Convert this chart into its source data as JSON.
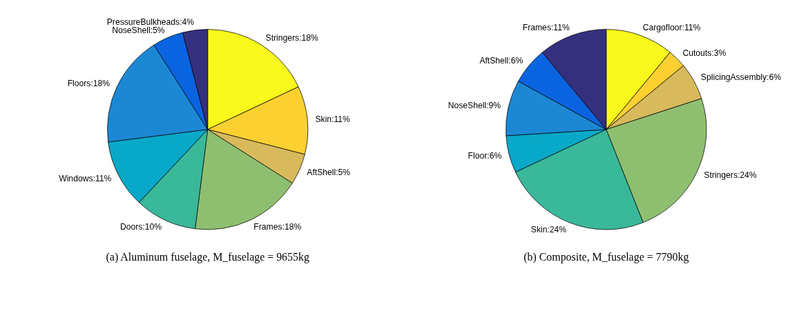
{
  "chart_data": [
    {
      "type": "pie",
      "title": "(a) Aluminum fuselage, M_fuselage = 9655kg",
      "categories": [
        "Stringers",
        "Skin",
        "AftShell",
        "Frames",
        "Doors",
        "Windows",
        "Floors",
        "NoseShell",
        "PressureBulkheads"
      ],
      "values": [
        18,
        11,
        5,
        18,
        10,
        11,
        18,
        5,
        4
      ],
      "value_labels": [
        "18%",
        "11%",
        "5%",
        "18%",
        "10%",
        "11%",
        "18%",
        "5%",
        "4%"
      ],
      "colors": [
        "#f8f81c",
        "#fcd030",
        "#d8ba5c",
        "#8ebf70",
        "#3ab89a",
        "#08a8c8",
        "#1c88d4",
        "#0a64e0",
        "#35307e"
      ]
    },
    {
      "type": "pie",
      "title": "(b) Composite, M_fuselage = 7790kg",
      "categories": [
        "Cargofloor",
        "Cutouts",
        "SplicingAssembly",
        "Stringers",
        "Skin",
        "Floor",
        "NoseShell",
        "AftShell",
        "Frames"
      ],
      "values": [
        11,
        3,
        6,
        24,
        24,
        6,
        9,
        6,
        11
      ],
      "value_labels": [
        "11%",
        "3%",
        "6%",
        "24%",
        "24%",
        "6%",
        "9%",
        "6%",
        "11%"
      ],
      "colors": [
        "#f8f81c",
        "#fcd030",
        "#d8ba5c",
        "#8ebf70",
        "#3ab89a",
        "#08a8c8",
        "#1c88d4",
        "#0a64e0",
        "#35307e"
      ]
    }
  ]
}
